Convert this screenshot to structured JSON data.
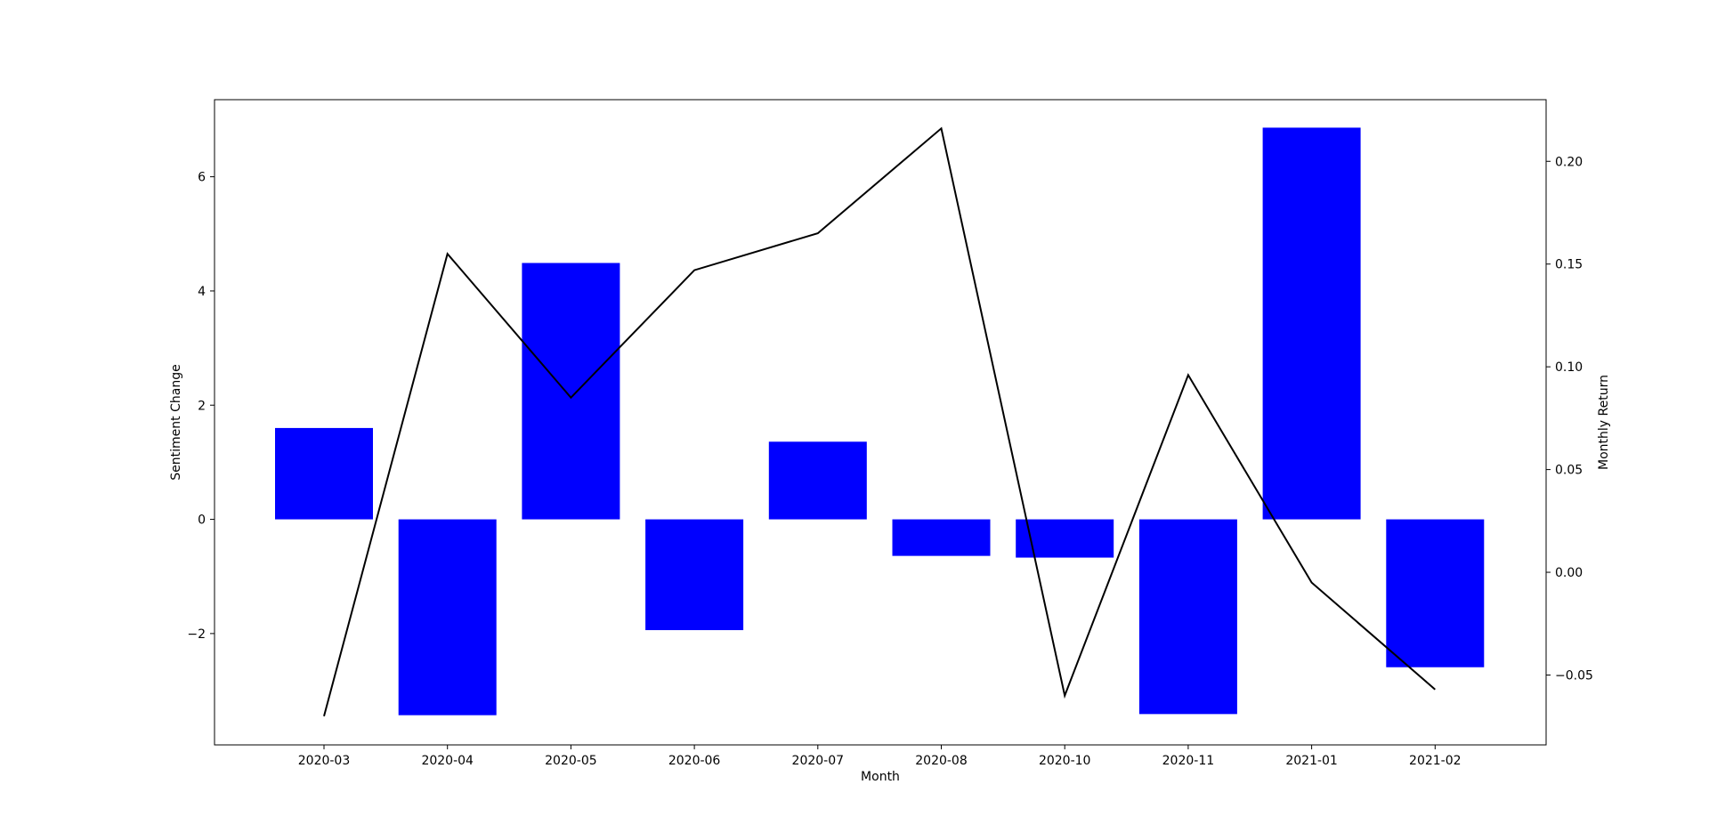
{
  "chart_data": {
    "type": "bar",
    "categories": [
      "2020-03",
      "2020-04",
      "2020-05",
      "2020-06",
      "2020-07",
      "2020-08",
      "2020-10",
      "2020-11",
      "2021-01",
      "2021-02"
    ],
    "series": [
      {
        "axis": "left",
        "type": "bar",
        "color": "#0000ff",
        "values": [
          1.6,
          -3.43,
          4.49,
          -1.94,
          1.36,
          -0.64,
          -0.67,
          -3.41,
          6.86,
          -2.59
        ]
      },
      {
        "axis": "right",
        "type": "line",
        "color": "#000000",
        "values": [
          -0.07,
          0.155,
          0.085,
          0.147,
          0.165,
          0.216,
          -0.06,
          0.096,
          -0.005,
          -0.057
        ]
      }
    ],
    "xlabel": "Month",
    "ylabel": "Sentiment Change",
    "y2label": "Monthly Return",
    "ylim": [
      -3.95,
      7.35
    ],
    "y2lim": [
      -0.084,
      0.23
    ],
    "yticks": [
      -2,
      0,
      2,
      4,
      6
    ],
    "y2ticks": [
      -0.05,
      0.0,
      0.05,
      0.1,
      0.15,
      0.2
    ],
    "ytick_labels": [
      "−2",
      "0",
      "2",
      "4",
      "6"
    ],
    "y2tick_labels": [
      "−0.05",
      "0.00",
      "0.05",
      "0.10",
      "0.15",
      "0.20"
    ],
    "grid": false,
    "legend": "none"
  }
}
